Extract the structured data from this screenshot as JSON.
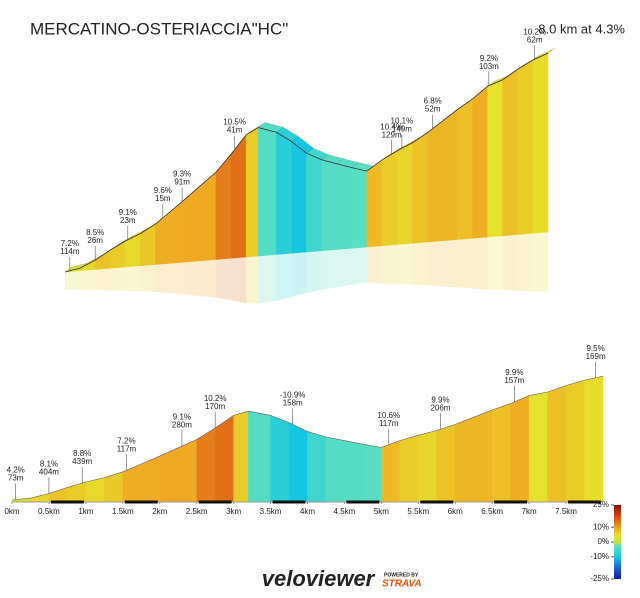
{
  "header": {
    "title": "MERCATINO-OSTERIACCIA\"HC\"",
    "summary": "8.0 km at 4.3%"
  },
  "chart_data": {
    "type": "profile",
    "x": [
      0,
      0.25,
      0.5,
      0.75,
      1.0,
      1.25,
      1.5,
      1.75,
      2.0,
      2.25,
      2.5,
      2.75,
      3.0,
      3.2,
      3.5,
      3.75,
      4.0,
      4.25,
      4.5,
      4.75,
      5.0,
      5.25,
      5.5,
      5.75,
      6.0,
      6.25,
      6.5,
      6.75,
      7.0,
      7.25,
      7.5,
      7.75,
      8.0
    ],
    "values": [
      0,
      5,
      18,
      35,
      50,
      62,
      78,
      100,
      122,
      145,
      168,
      200,
      235,
      247,
      235,
      215,
      190,
      175,
      165,
      155,
      146,
      165,
      180,
      193,
      210,
      230,
      250,
      268,
      290,
      300,
      318,
      333,
      344
    ],
    "xlim": [
      0,
      8
    ],
    "xticks": [
      {
        "value": 0,
        "label": "0km"
      },
      {
        "value": 0.5,
        "label": "0.5km"
      },
      {
        "value": 1,
        "label": "1km"
      },
      {
        "value": 1.5,
        "label": "1.5km"
      },
      {
        "value": 2,
        "label": "2km"
      },
      {
        "value": 2.5,
        "label": "2.5km"
      },
      {
        "value": 3,
        "label": "3km"
      },
      {
        "value": 3.5,
        "label": "3.5km"
      },
      {
        "value": 4,
        "label": "4km"
      },
      {
        "value": 4.5,
        "label": "4.5km"
      },
      {
        "value": 5,
        "label": "5km"
      },
      {
        "value": 5.5,
        "label": "5.5km"
      },
      {
        "value": 6,
        "label": "6km"
      },
      {
        "value": 6.5,
        "label": "6.5km"
      },
      {
        "value": 7,
        "label": "7km"
      },
      {
        "value": 7.5,
        "label": "7.5km"
      }
    ],
    "colorscale": [
      [
        -25,
        "#1a1aa8"
      ],
      [
        -15,
        "#1e7fe0"
      ],
      [
        -10,
        "#16c6e0"
      ],
      [
        -3,
        "#60e0c0"
      ],
      [
        0,
        "#c8e03c"
      ],
      [
        4,
        "#e6e22c"
      ],
      [
        10,
        "#f0a020"
      ],
      [
        18,
        "#d04010"
      ],
      [
        25,
        "#8a1010"
      ]
    ],
    "legend_ticks": [
      {
        "value": 25,
        "label": "25%"
      },
      {
        "value": 10,
        "label": "10%"
      },
      {
        "value": 0,
        "label": "0%"
      },
      {
        "value": -10,
        "label": "-10%"
      },
      {
        "value": -25,
        "label": "-25%"
      }
    ],
    "annotations_3d": [
      {
        "x": 0.08,
        "grade": "7.2%",
        "length": "114m"
      },
      {
        "x": 0.5,
        "grade": "8.5%",
        "length": "26m"
      },
      {
        "x": 1.04,
        "grade": "9.1%",
        "length": "23m"
      },
      {
        "x": 1.62,
        "grade": "9.6%",
        "length": "15m"
      },
      {
        "x": 1.94,
        "grade": "9.3%",
        "length": "91m"
      },
      {
        "x": 2.81,
        "grade": "10.5%",
        "length": "41m"
      },
      {
        "x": 5.41,
        "grade": "10.4%",
        "length": "129m"
      },
      {
        "x": 5.58,
        "grade": "10.1%",
        "length": "149m"
      },
      {
        "x": 6.09,
        "grade": "6.8%",
        "length": "52m"
      },
      {
        "x": 7.02,
        "grade": "9.2%",
        "length": "103m"
      },
      {
        "x": 7.78,
        "grade": "10.2%",
        "length": "62m"
      }
    ],
    "annotations_2d": [
      {
        "x": 0.05,
        "grade": "4.2%",
        "length": "73m"
      },
      {
        "x": 0.5,
        "grade": "8.1%",
        "length": "404m"
      },
      {
        "x": 0.95,
        "grade": "8.8%",
        "length": "439m"
      },
      {
        "x": 1.55,
        "grade": "7.2%",
        "length": "117m"
      },
      {
        "x": 2.3,
        "grade": "9.1%",
        "length": "280m"
      },
      {
        "x": 2.75,
        "grade": "10.2%",
        "length": "170m"
      },
      {
        "x": 3.8,
        "grade": "-10.9%",
        "length": "158m"
      },
      {
        "x": 5.1,
        "grade": "10.6%",
        "length": "117m"
      },
      {
        "x": 5.8,
        "grade": "9.9%",
        "length": "206m"
      },
      {
        "x": 6.8,
        "grade": "9.9%",
        "length": "157m"
      },
      {
        "x": 7.9,
        "grade": "9.5%",
        "length": "169m"
      }
    ]
  },
  "footer": {
    "logo": "veloviewer",
    "powered_by": "POWERED BY",
    "strava": "STRAVA"
  }
}
